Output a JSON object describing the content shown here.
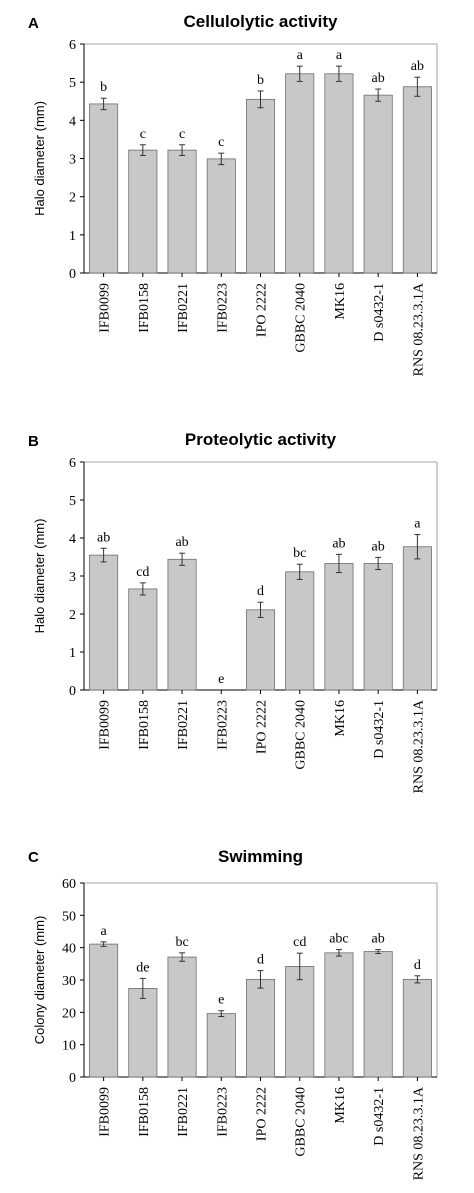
{
  "chart_data": [
    {
      "type": "bar",
      "panel": "A",
      "title": "Cellulolytic activity",
      "ylabel": "Halo diameter (mm)",
      "ylim": [
        0,
        6
      ],
      "yticks": [
        "0",
        "1",
        "2",
        "3",
        "4",
        "5",
        "6"
      ],
      "categories": [
        "IFB0099",
        "IFB0158",
        "IFB0221",
        "IFB0223",
        "IPO 2222",
        "GBBC 2040",
        "MK16",
        "D s0432-1",
        "RNS 08.23.3.1A"
      ],
      "values": [
        4.43,
        3.22,
        3.22,
        2.99,
        4.55,
        5.22,
        5.22,
        4.66,
        4.88
      ],
      "errors": [
        0.15,
        0.14,
        0.14,
        0.15,
        0.22,
        0.2,
        0.2,
        0.16,
        0.25
      ],
      "letters": [
        "b",
        "c",
        "c",
        "c",
        "b",
        "a",
        "a",
        "ab",
        "ab"
      ]
    },
    {
      "type": "bar",
      "panel": "B",
      "title": "Proteolytic activity",
      "ylabel": "Halo diameter (mm)",
      "ylim": [
        0,
        6
      ],
      "yticks": [
        "0",
        "1",
        "2",
        "3",
        "4",
        "5",
        "6"
      ],
      "categories": [
        "IFB0099",
        "IFB0158",
        "IFB0221",
        "IFB0223",
        "IPO 2222",
        "GBBC 2040",
        "MK16",
        "D s0432-1",
        "RNS 08.23.3.1A"
      ],
      "values": [
        3.55,
        2.66,
        3.44,
        0,
        2.11,
        3.11,
        3.33,
        3.33,
        3.77
      ],
      "errors": [
        0.18,
        0.16,
        0.16,
        0,
        0.2,
        0.2,
        0.24,
        0.16,
        0.32
      ],
      "letters": [
        "ab",
        "cd",
        "ab",
        "e",
        "d",
        "bc",
        "ab",
        "ab",
        "a"
      ]
    },
    {
      "type": "bar",
      "panel": "C",
      "title": "Swimming",
      "ylabel": "Colony diameter (mm)",
      "ylim": [
        0,
        60
      ],
      "yticks": [
        "0",
        "10",
        "20",
        "30",
        "40",
        "50",
        "60"
      ],
      "categories": [
        "IFB0099",
        "IFB0158",
        "IFB0221",
        "IFB0223",
        "IPO 2222",
        "GBBC 2040",
        "MK16",
        "D s0432-1",
        "RNS 08.23.3.1A"
      ],
      "values": [
        41.1,
        27.4,
        37.1,
        19.6,
        30.2,
        34.2,
        38.4,
        38.8,
        30.2
      ],
      "errors": [
        0.7,
        3.1,
        1.3,
        0.9,
        2.7,
        4.1,
        1.0,
        0.6,
        1.1
      ],
      "letters": [
        "a",
        "de",
        "bc",
        "e",
        "d",
        "cd",
        "abc",
        "ab",
        "d"
      ]
    }
  ]
}
